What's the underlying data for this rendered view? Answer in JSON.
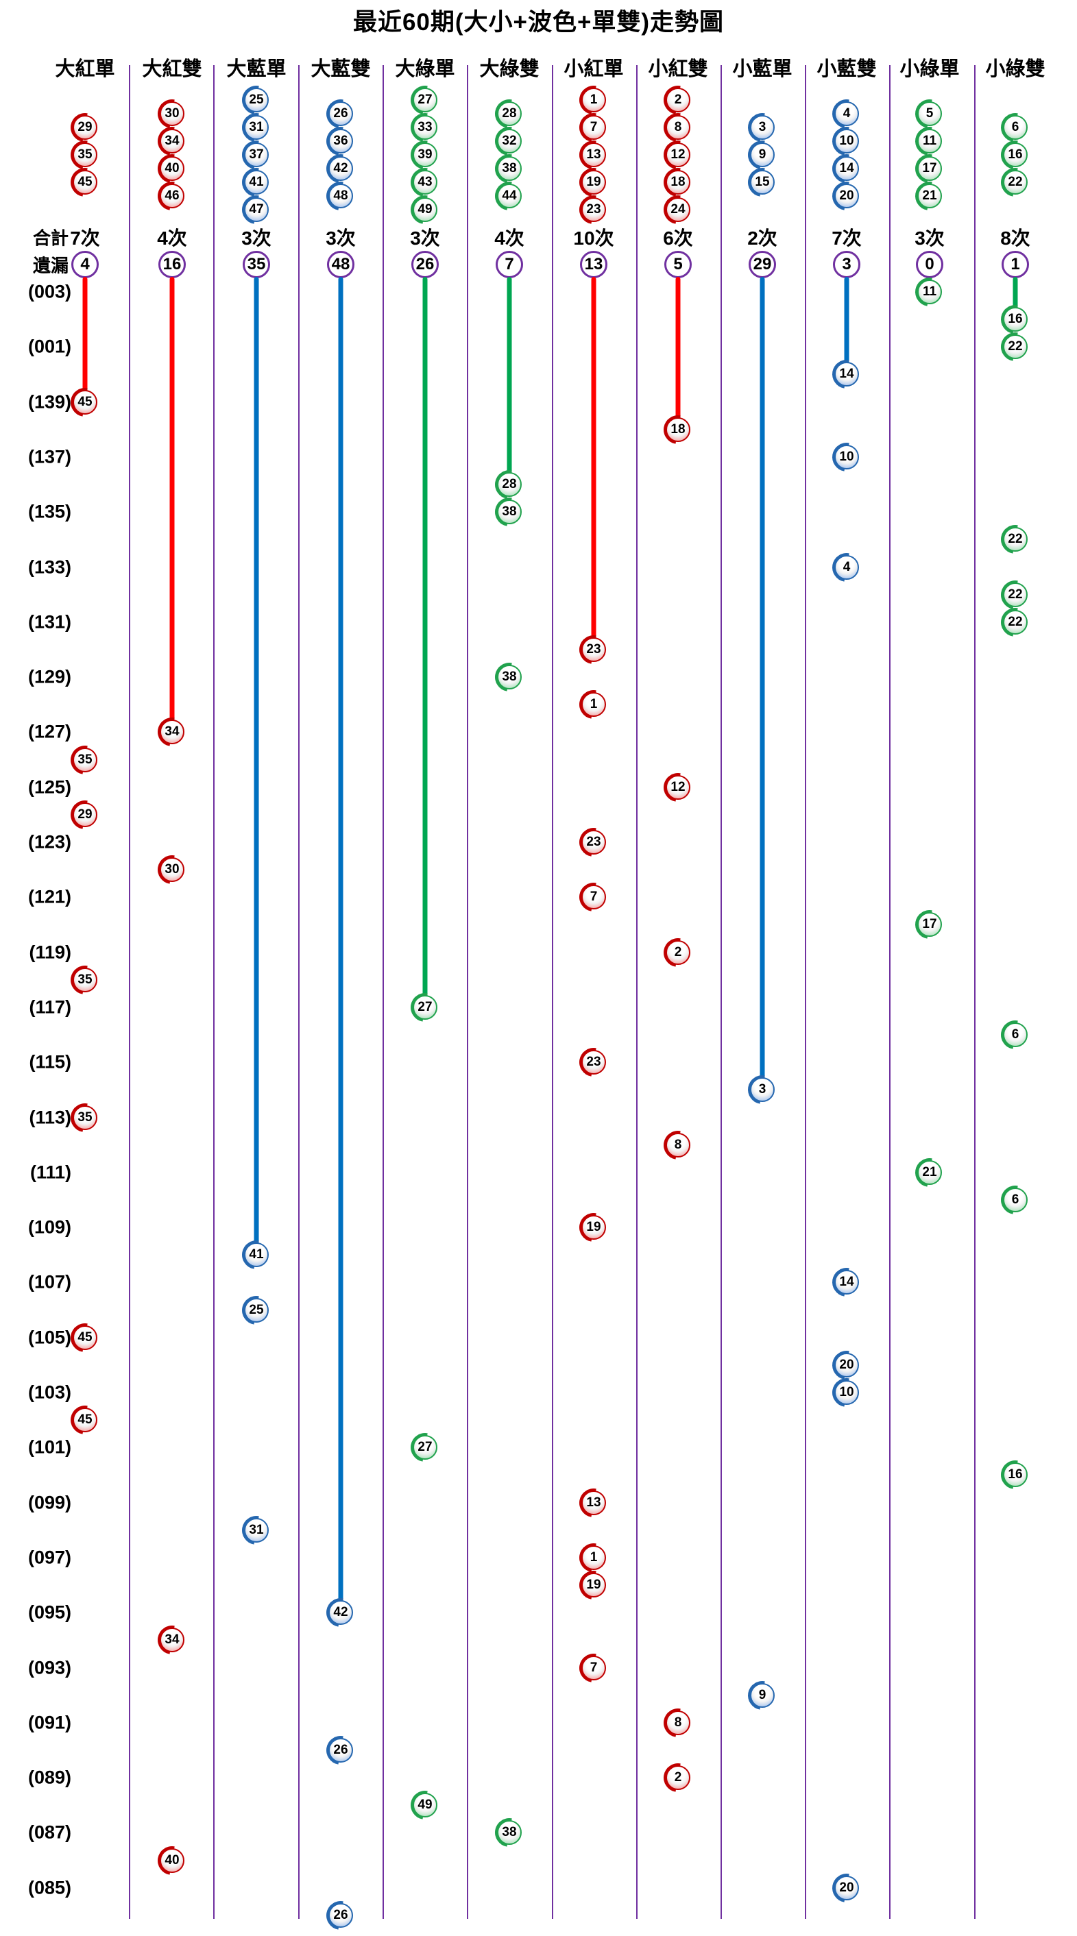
{
  "title": "最近60期(大小+波色+單雙)走勢圖",
  "labels": {
    "total_row": "合計",
    "miss_row": "遺漏"
  },
  "colors": {
    "red": "#ff0000",
    "blue": "#0070c0",
    "green": "#00a651",
    "purple": "#7030a0",
    "ball_red": "#c00000",
    "ball_blue": "#2567af",
    "ball_green": "#21a24d"
  },
  "row_labels": [
    "(003)",
    "(001)",
    "(139)",
    "(137)",
    "(135)",
    "(133)",
    "(131)",
    "(129)",
    "(127)",
    "(125)",
    "(123)",
    "(121)",
    "(119)",
    "(117)",
    "(115)",
    "(113)",
    "(111)",
    "(109)",
    "(107)",
    "(105)",
    "(103)",
    "(101)",
    "(099)",
    "(097)",
    "(095)",
    "(093)",
    "(091)",
    "(089)",
    "(087)",
    "(085)"
  ],
  "chart_data": {
    "type": "scatter",
    "title": "最近60期(大小+波色+單雙)走勢圖",
    "rows_total": 60,
    "row_label_note": "labels shown on every second row, from (003) down to (085)",
    "columns": [
      {
        "label": "大紅單",
        "group": "red",
        "top_balls": [
          "29",
          "35",
          "45"
        ],
        "total": "7次",
        "miss": "4",
        "occurrences": [
          {
            "row": 4,
            "num": "45"
          },
          {
            "row": 17,
            "num": "35"
          },
          {
            "row": 19,
            "num": "29"
          },
          {
            "row": 25,
            "num": "35"
          },
          {
            "row": 30,
            "num": "35"
          },
          {
            "row": 38,
            "num": "45"
          },
          {
            "row": 41,
            "num": "45"
          }
        ]
      },
      {
        "label": "大紅雙",
        "group": "red",
        "top_balls": [
          "30",
          "34",
          "40",
          "46"
        ],
        "total": "4次",
        "miss": "16",
        "occurrences": [
          {
            "row": 16,
            "num": "34"
          },
          {
            "row": 21,
            "num": "30"
          },
          {
            "row": 49,
            "num": "34"
          },
          {
            "row": 57,
            "num": "40"
          }
        ]
      },
      {
        "label": "大藍單",
        "group": "blue",
        "top_balls": [
          "25",
          "31",
          "37",
          "41",
          "47"
        ],
        "total": "3次",
        "miss": "35",
        "occurrences": [
          {
            "row": 35,
            "num": "41"
          },
          {
            "row": 37,
            "num": "25"
          },
          {
            "row": 45,
            "num": "31"
          }
        ]
      },
      {
        "label": "大藍雙",
        "group": "blue",
        "top_balls": [
          "26",
          "36",
          "42",
          "48"
        ],
        "total": "3次",
        "miss": "48",
        "occurrences": [
          {
            "row": 48,
            "num": "42"
          },
          {
            "row": 53,
            "num": "26"
          },
          {
            "row": 59,
            "num": "26"
          }
        ]
      },
      {
        "label": "大綠單",
        "group": "green",
        "top_balls": [
          "27",
          "33",
          "39",
          "43",
          "49"
        ],
        "total": "3次",
        "miss": "26",
        "occurrences": [
          {
            "row": 26,
            "num": "27"
          },
          {
            "row": 42,
            "num": "27"
          },
          {
            "row": 55,
            "num": "49"
          }
        ]
      },
      {
        "label": "大綠雙",
        "group": "green",
        "top_balls": [
          "28",
          "32",
          "38",
          "44"
        ],
        "total": "4次",
        "miss": "7",
        "occurrences": [
          {
            "row": 7,
            "num": "28"
          },
          {
            "row": 8,
            "num": "38"
          },
          {
            "row": 14,
            "num": "38"
          },
          {
            "row": 56,
            "num": "38"
          }
        ]
      },
      {
        "label": "小紅單",
        "group": "red",
        "top_balls": [
          "1",
          "7",
          "13",
          "19",
          "23"
        ],
        "total": "10次",
        "miss": "13",
        "occurrences": [
          {
            "row": 13,
            "num": "23"
          },
          {
            "row": 15,
            "num": "1"
          },
          {
            "row": 20,
            "num": "23"
          },
          {
            "row": 22,
            "num": "7"
          },
          {
            "row": 28,
            "num": "23"
          },
          {
            "row": 34,
            "num": "19"
          },
          {
            "row": 44,
            "num": "13"
          },
          {
            "row": 46,
            "num": "1"
          },
          {
            "row": 47,
            "num": "19"
          },
          {
            "row": 50,
            "num": "7"
          }
        ]
      },
      {
        "label": "小紅雙",
        "group": "red",
        "top_balls": [
          "2",
          "8",
          "12",
          "18",
          "24"
        ],
        "total": "6次",
        "miss": "5",
        "occurrences": [
          {
            "row": 5,
            "num": "18"
          },
          {
            "row": 18,
            "num": "12"
          },
          {
            "row": 24,
            "num": "2"
          },
          {
            "row": 31,
            "num": "8"
          },
          {
            "row": 52,
            "num": "8"
          },
          {
            "row": 54,
            "num": "2"
          }
        ]
      },
      {
        "label": "小藍單",
        "group": "blue",
        "top_balls": [
          "3",
          "9",
          "15"
        ],
        "total": "2次",
        "miss": "29",
        "occurrences": [
          {
            "row": 29,
            "num": "3"
          },
          {
            "row": 51,
            "num": "9"
          }
        ]
      },
      {
        "label": "小藍雙",
        "group": "blue",
        "top_balls": [
          "4",
          "10",
          "14",
          "20"
        ],
        "total": "7次",
        "miss": "3",
        "occurrences": [
          {
            "row": 3,
            "num": "14"
          },
          {
            "row": 6,
            "num": "10"
          },
          {
            "row": 10,
            "num": "4"
          },
          {
            "row": 36,
            "num": "14"
          },
          {
            "row": 39,
            "num": "20"
          },
          {
            "row": 40,
            "num": "10"
          },
          {
            "row": 58,
            "num": "20"
          }
        ]
      },
      {
        "label": "小綠單",
        "group": "green",
        "top_balls": [
          "5",
          "11",
          "17",
          "21"
        ],
        "total": "3次",
        "miss": "0",
        "occurrences": [
          {
            "row": 0,
            "num": "11"
          },
          {
            "row": 23,
            "num": "17"
          },
          {
            "row": 32,
            "num": "21"
          }
        ]
      },
      {
        "label": "小綠雙",
        "group": "green",
        "top_balls": [
          "6",
          "16",
          "22"
        ],
        "total": "8次",
        "miss": "1",
        "occurrences": [
          {
            "row": 1,
            "num": "16"
          },
          {
            "row": 2,
            "num": "22"
          },
          {
            "row": 9,
            "num": "22"
          },
          {
            "row": 11,
            "num": "22"
          },
          {
            "row": 12,
            "num": "22"
          },
          {
            "row": 27,
            "num": "6"
          },
          {
            "row": 33,
            "num": "6"
          },
          {
            "row": 43,
            "num": "16"
          }
        ]
      }
    ]
  }
}
